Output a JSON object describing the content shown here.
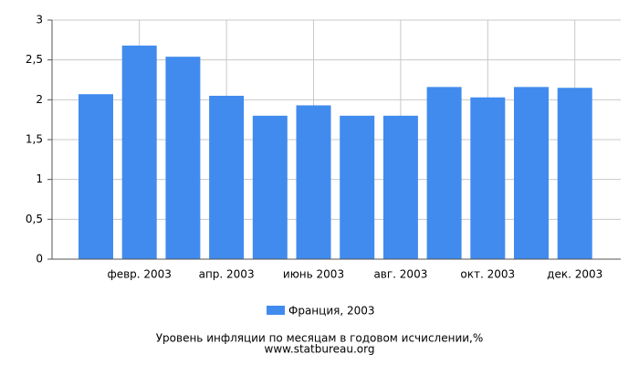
{
  "chart_data": {
    "type": "bar",
    "title": "Уровень инфляции по месяцам в годовом исчислении,%",
    "source": "www.statbureau.org",
    "categories": [
      null,
      "февр. 2003",
      null,
      "апр. 2003",
      null,
      "июнь 2003",
      null,
      "авг. 2003",
      null,
      "окт. 2003",
      null,
      "дек. 2003"
    ],
    "series": [
      {
        "name": "Франция, 2003",
        "color": "#418bee",
        "values": [
          2.07,
          2.68,
          2.54,
          2.05,
          1.8,
          1.93,
          1.8,
          1.8,
          2.16,
          2.03,
          2.16,
          2.15
        ]
      }
    ],
    "ylim": [
      0,
      3
    ],
    "yticks": [
      0,
      {
        "value": 0.5,
        "label": "0,5"
      },
      1,
      {
        "value": 1.5,
        "label": "1,5"
      },
      2,
      {
        "value": 2.5,
        "label": "2,5"
      },
      3
    ],
    "grid": true
  }
}
